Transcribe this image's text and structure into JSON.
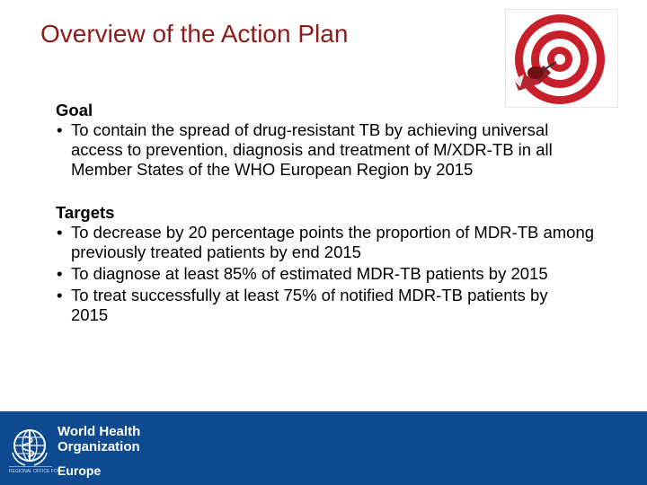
{
  "slide": {
    "title": "Overview of the Action Plan",
    "image_icon": "dartboard-target-image"
  },
  "goal": {
    "heading": "Goal",
    "bullets": [
      "To contain the spread of drug-resistant TB by achieving universal access to prevention, diagnosis and treatment of M/XDR-TB in all Member States of the WHO European Region by 2015"
    ]
  },
  "targets": {
    "heading": "Targets",
    "bullets": [
      "To decrease by 20 percentage points the proportion of MDR-TB among previously treated patients by end 2015",
      "To diagnose at least 85% of estimated MDR-TB patients by 2015",
      "To treat successfully at least 75% of notified MDR-TB patients by 2015"
    ]
  },
  "bullet_char": "•",
  "footer": {
    "org_line1": "World Health",
    "org_line2": "Organization",
    "office": "REGIONAL OFFICE FOR",
    "region": "Europe",
    "emblem_icon": "who-emblem-icon"
  },
  "colors": {
    "title": "#8e1b1b",
    "footer_bg": "#0d4a8f",
    "target_red": "#c8202b"
  }
}
